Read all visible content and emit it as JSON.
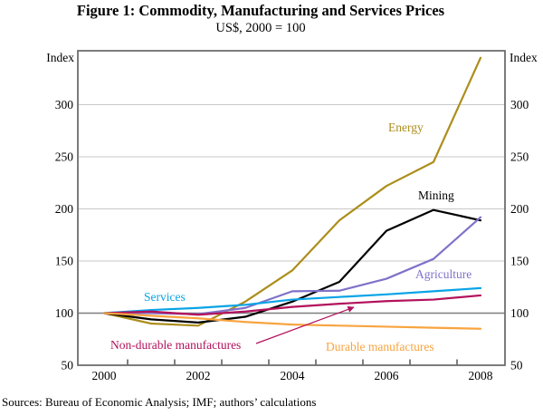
{
  "figure": {
    "title": "Figure 1: Commodity, Manufacturing and Services Prices",
    "subtitle": "US$, 2000 = 100",
    "source_note": "Sources: Bureau of Economic Analysis; IMF; authors’ calculations",
    "axis_unit_left": "Index",
    "axis_unit_right": "Index"
  },
  "chart_data": {
    "type": "line",
    "title": "Figure 1: Commodity, Manufacturing and Services Prices",
    "subtitle": "US$, 2000 = 100",
    "x_years": [
      2000,
      2001,
      2002,
      2003,
      2004,
      2005,
      2006,
      2007,
      2008
    ],
    "x_tick_labels": [
      "2000",
      "2002",
      "2004",
      "2006",
      "2008"
    ],
    "x_tick_label_years": [
      2000,
      2002,
      2004,
      2006,
      2008
    ],
    "y_tick_values": [
      50,
      100,
      150,
      200,
      250,
      300
    ],
    "ylim": [
      50,
      352
    ],
    "baseline_value": 100,
    "grid": "horizontal-light-gridlines",
    "legend_position": "inline-series-labels",
    "colors": {
      "gridline_light": "#c9c9c9",
      "baseline_dark": "#7d7d7d",
      "plot_border": "#6e6e6e"
    },
    "series": [
      {
        "name": "Energy",
        "color": "#ac8e1c",
        "values": [
          100,
          90,
          88,
          111,
          141,
          189,
          222,
          245,
          345
        ]
      },
      {
        "name": "Mining",
        "color": "#000000",
        "values": [
          100,
          94,
          91,
          96.5,
          111,
          130,
          179,
          199,
          189
        ]
      },
      {
        "name": "Agriculture",
        "color": "#8071ca",
        "values": [
          100,
          100,
          99,
          105,
          121,
          121.5,
          133,
          152,
          192
        ]
      },
      {
        "name": "Services",
        "color": "#09a3e6",
        "values": [
          100,
          103,
          105,
          108,
          113,
          115.5,
          118,
          121,
          124
        ]
      },
      {
        "name": "Non-durable manufactures",
        "color": "#b2125c",
        "values": [
          100,
          101.5,
          98.5,
          101.5,
          106,
          109,
          111.5,
          113,
          117
        ]
      },
      {
        "name": "Durable manufactures",
        "color": "#f8a440",
        "values": [
          100,
          97.5,
          95,
          91.5,
          89,
          88,
          87,
          86,
          85
        ]
      }
    ]
  }
}
